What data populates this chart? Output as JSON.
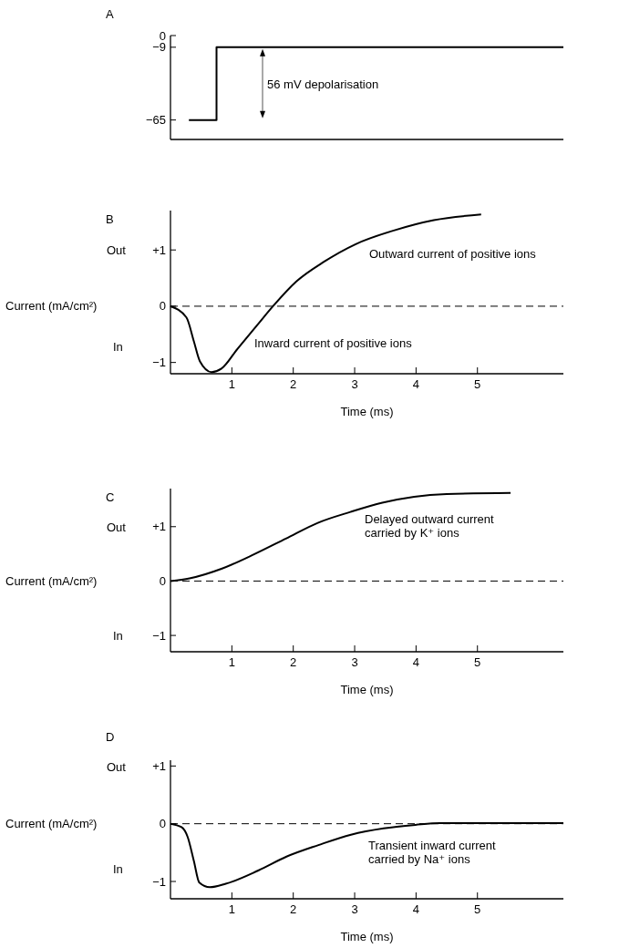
{
  "chart_data": [
    {
      "type": "line",
      "title": "A",
      "x": [
        0.3,
        0.75,
        0.75,
        6.4
      ],
      "series": [
        {
          "color": "#000000",
          "values": [
            -65,
            -65,
            -9,
            -9
          ]
        }
      ],
      "xlim": [
        0,
        6.4
      ],
      "ylim": [
        -80,
        0
      ],
      "yticks": [
        0,
        -9,
        -65
      ],
      "tick_labels": "y",
      "annotations": [
        "56 mV depolarisation"
      ]
    },
    {
      "type": "line",
      "title": "B",
      "ylabel": "Current (mA/cm²)",
      "xlabel": "Time (ms)",
      "x": [
        0,
        0.26,
        0.38,
        0.48,
        0.67,
        0.83,
        1.09,
        1.41,
        1.67,
        2.05,
        2.5,
        3.01,
        3.65,
        4.29,
        5.06
      ],
      "series": [
        {
          "color": "#000000",
          "values": [
            0,
            -0.2,
            -0.62,
            -0.98,
            -1.17,
            -1.11,
            -0.76,
            -0.34,
            0,
            0.44,
            0.79,
            1.1,
            1.35,
            1.53,
            1.63
          ]
        }
      ],
      "xlim": [
        0,
        6.4
      ],
      "ylim": [
        -1.2,
        1.7
      ],
      "xticks": [
        1,
        2,
        3,
        4,
        5
      ],
      "yticks": [
        {
          "value": 1,
          "label": "+1"
        },
        {
          "value": 0,
          "label": "0"
        },
        {
          "value": -1,
          "label": "−1"
        }
      ],
      "ref_lines": [
        {
          "axis": "y",
          "value": 0,
          "line_style": "dashed",
          "color": "#000000"
        }
      ],
      "annotations": [
        "Out",
        "In",
        "Outward current of positive ions",
        "Inward current of positive ions"
      ]
    },
    {
      "type": "line",
      "title": "C",
      "ylabel": "Current (mA/cm²)",
      "xlabel": "Time (ms)",
      "x": [
        0,
        0.31,
        0.84,
        1.36,
        1.88,
        2.4,
        2.93,
        3.45,
        3.97,
        4.5,
        5.54
      ],
      "series": [
        {
          "color": "#000000",
          "values": [
            0,
            0.05,
            0.23,
            0.49,
            0.78,
            1.07,
            1.27,
            1.44,
            1.55,
            1.6,
            1.62
          ]
        }
      ],
      "xlim": [
        0,
        6.4
      ],
      "ylim": [
        -1.3,
        1.7
      ],
      "xticks": [
        1,
        2,
        3,
        4,
        5
      ],
      "yticks": [
        {
          "value": 1,
          "label": "+1"
        },
        {
          "value": 0,
          "label": "0"
        },
        {
          "value": -1,
          "label": "−1"
        }
      ],
      "ref_lines": [
        {
          "axis": "y",
          "value": 0,
          "line_style": "dashed",
          "color": "#000000"
        }
      ],
      "annotations": [
        "Out",
        "In",
        "Delayed outward current\ncarried by K⁺ ions"
      ]
    },
    {
      "type": "line",
      "title": "D",
      "ylabel": "Current (mA/cm²)",
      "xlabel": "Time (ms)",
      "x": [
        0,
        0.18,
        0.28,
        0.38,
        0.47,
        0.64,
        0.9,
        1.43,
        1.89,
        2.41,
        2.94,
        3.47,
        3.99,
        4.39,
        6.4
      ],
      "series": [
        {
          "color": "#000000",
          "values": [
            0,
            -0.06,
            -0.23,
            -0.64,
            -1.02,
            -1.1,
            -1.04,
            -0.81,
            -0.57,
            -0.37,
            -0.19,
            -0.08,
            -0.02,
            0.01,
            0.01
          ]
        }
      ],
      "xlim": [
        0,
        6.4
      ],
      "ylim": [
        -1.3,
        1.1
      ],
      "xticks": [
        1,
        2,
        3,
        4,
        5
      ],
      "yticks": [
        {
          "value": 1,
          "label": "+1"
        },
        {
          "value": 0,
          "label": "0"
        },
        {
          "value": -1,
          "label": "−1"
        }
      ],
      "ref_lines": [
        {
          "axis": "y",
          "value": 0,
          "line_style": "dashed",
          "color": "#000000"
        }
      ],
      "annotations": [
        "Out",
        "In",
        "Transient inward current\ncarried by Na⁺ ions"
      ]
    }
  ]
}
